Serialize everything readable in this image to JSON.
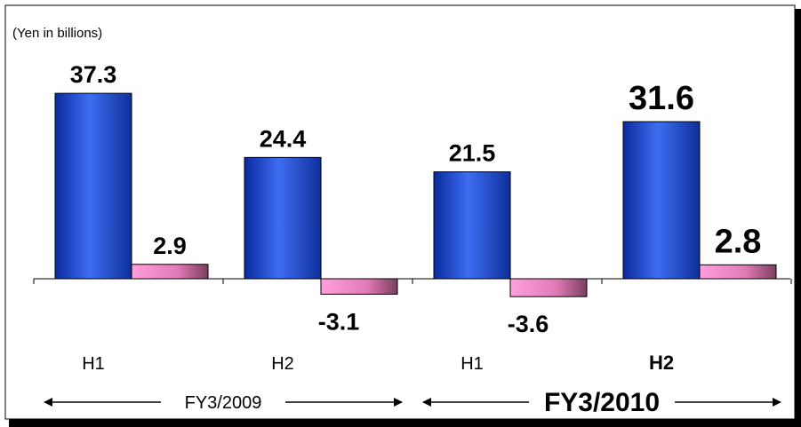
{
  "chart_data": {
    "type": "bar",
    "unit_label": "(Yen in billions)",
    "categories": [
      "H1",
      "H2",
      "H1",
      "H2"
    ],
    "groups": [
      {
        "label": "FY3/2009",
        "categories": [
          0,
          1
        ]
      },
      {
        "label": "FY3/2010",
        "categories": [
          2,
          3
        ]
      }
    ],
    "series": [
      {
        "color": "#2f56e0",
        "values": [
          37.3,
          24.4,
          21.5,
          31.6
        ]
      },
      {
        "color": "#f07cc8",
        "values": [
          2.9,
          -3.1,
          -3.6,
          2.8
        ]
      }
    ],
    "value_labels": [
      [
        "37.3",
        "24.4",
        "21.5",
        "31.6"
      ],
      [
        "2.9",
        "-3.1",
        "-3.6",
        "2.8"
      ]
    ],
    "ylim": [
      -8.5,
      44.5
    ],
    "grid": false,
    "legend": "none"
  }
}
